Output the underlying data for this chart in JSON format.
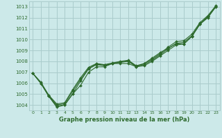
{
  "background_color": "#cce9e9",
  "grid_color": "#aacccc",
  "line_color": "#2d6a2d",
  "title": "Graphe pression niveau de la mer (hPa)",
  "xlim": [
    -0.5,
    23.5
  ],
  "ylim": [
    1003.5,
    1013.5
  ],
  "yticks": [
    1004,
    1005,
    1006,
    1007,
    1008,
    1009,
    1010,
    1011,
    1012,
    1013
  ],
  "xticks": [
    0,
    1,
    2,
    3,
    4,
    5,
    6,
    7,
    8,
    9,
    10,
    11,
    12,
    13,
    14,
    15,
    16,
    17,
    18,
    19,
    20,
    21,
    22,
    23
  ],
  "series": [
    [
      1006.9,
      1006.0,
      1004.8,
      1003.8,
      1004.0,
      1005.0,
      1005.8,
      1007.0,
      1007.5,
      1007.5,
      1007.8,
      1007.8,
      1007.8,
      1007.5,
      1007.8,
      1008.3,
      1008.8,
      1009.2,
      1009.6,
      1009.6,
      1010.3,
      1011.4,
      1012.1,
      1013.0
    ],
    [
      1006.9,
      1006.0,
      1004.8,
      1003.9,
      1004.0,
      1005.0,
      1006.2,
      1007.3,
      1007.7,
      1007.6,
      1007.8,
      1007.9,
      1008.0,
      1007.5,
      1007.6,
      1008.0,
      1008.5,
      1009.0,
      1009.5,
      1009.6,
      1010.3,
      1011.4,
      1012.0,
      1013.0
    ],
    [
      1006.9,
      1006.0,
      1004.85,
      1004.0,
      1004.1,
      1005.25,
      1006.35,
      1007.35,
      1007.75,
      1007.65,
      1007.8,
      1007.95,
      1008.05,
      1007.55,
      1007.7,
      1008.1,
      1008.6,
      1009.15,
      1009.65,
      1009.75,
      1010.35,
      1011.45,
      1012.1,
      1013.05
    ],
    [
      1006.9,
      1006.1,
      1004.9,
      1004.1,
      1004.2,
      1005.4,
      1006.5,
      1007.45,
      1007.8,
      1007.7,
      1007.85,
      1008.0,
      1008.1,
      1007.6,
      1007.8,
      1008.2,
      1008.7,
      1009.3,
      1009.8,
      1009.9,
      1010.5,
      1011.55,
      1012.2,
      1013.1
    ]
  ]
}
